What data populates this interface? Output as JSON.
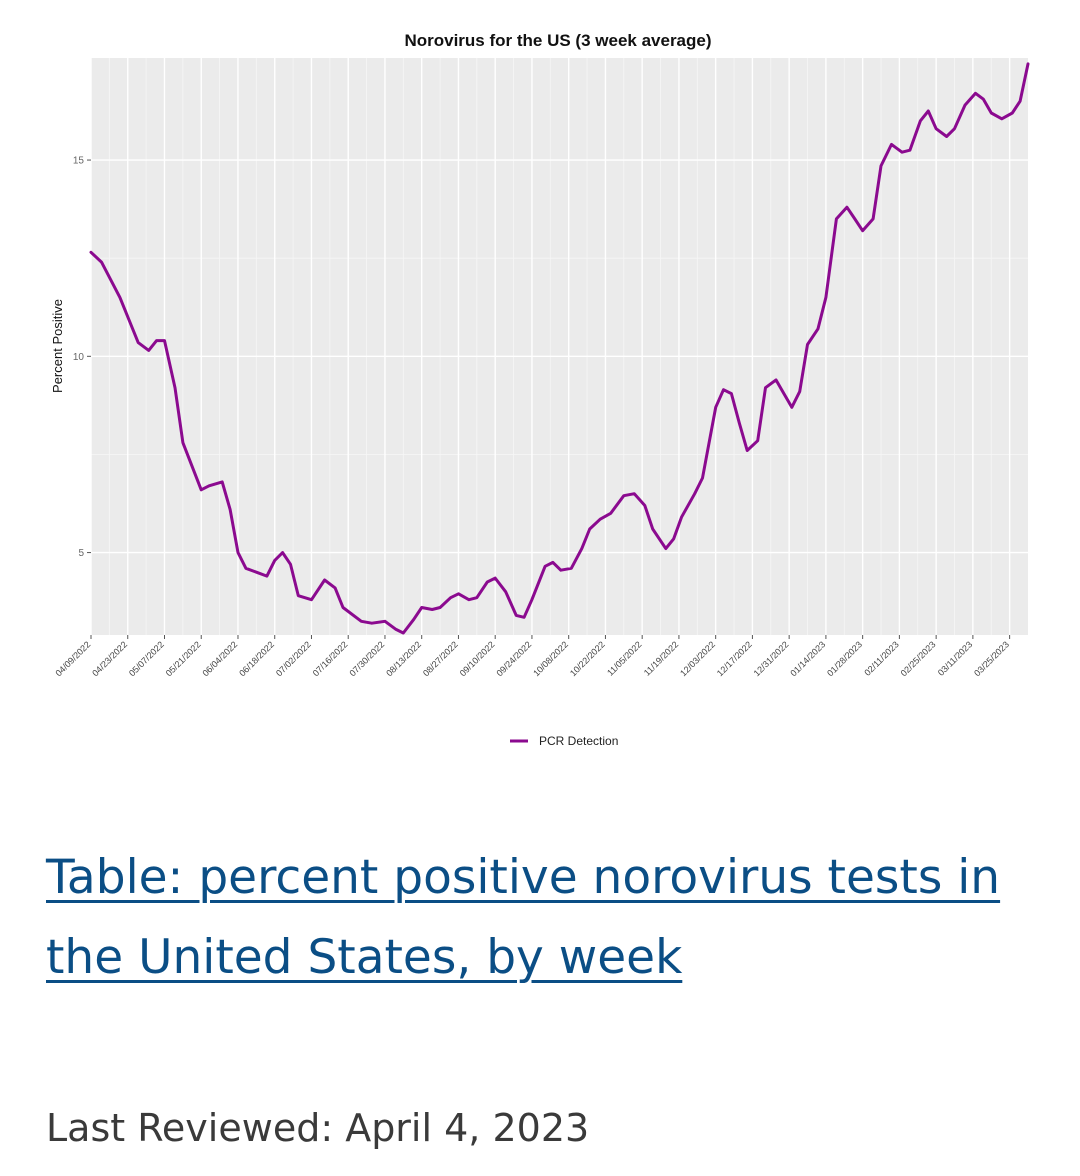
{
  "chart_data": {
    "type": "line",
    "title": "Norovirus for the US (3 week average)",
    "xlabel": "",
    "ylabel": "Percent Positive",
    "yticks": [
      5,
      10,
      15
    ],
    "ylim": [
      2.9,
      17.6
    ],
    "grid": true,
    "legend_position": "bottom",
    "x_tick_labels": [
      "04/09/2022",
      "04/23/2022",
      "05/07/2022",
      "05/21/2022",
      "06/04/2022",
      "06/18/2022",
      "07/02/2022",
      "07/16/2022",
      "07/30/2022",
      "08/13/2022",
      "08/27/2022",
      "09/10/2022",
      "09/24/2022",
      "10/08/2022",
      "10/22/2022",
      "11/05/2022",
      "11/19/2022",
      "12/03/2022",
      "12/17/2022",
      "12/31/2022",
      "01/14/2023",
      "01/28/2023",
      "02/11/2023",
      "02/25/2023",
      "03/11/2023",
      "03/25/2023"
    ],
    "x_start": "04/09/2022",
    "x_end": "04/01/2023",
    "series": [
      {
        "name": "PCR Detection",
        "color": "#8b0a8f",
        "x": [
          "04/09/2022",
          "04/13/2022",
          "04/20/2022",
          "04/27/2022",
          "05/01/2022",
          "05/04/2022",
          "05/07/2022",
          "05/11/2022",
          "05/14/2022",
          "05/21/2022",
          "05/24/2022",
          "05/29/2022",
          "06/01/2022",
          "06/04/2022",
          "06/07/2022",
          "06/11/2022",
          "06/15/2022",
          "06/18/2022",
          "06/21/2022",
          "06/24/2022",
          "06/27/2022",
          "07/02/2022",
          "07/07/2022",
          "07/11/2022",
          "07/14/2022",
          "07/21/2022",
          "07/25/2022",
          "07/30/2022",
          "08/03/2022",
          "08/06/2022",
          "08/10/2022",
          "08/13/2022",
          "08/17/2022",
          "08/20/2022",
          "08/24/2022",
          "08/27/2022",
          "08/31/2022",
          "09/03/2022",
          "09/07/2022",
          "09/10/2022",
          "09/14/2022",
          "09/18/2022",
          "09/21/2022",
          "09/24/2022",
          "09/29/2022",
          "10/02/2022",
          "10/05/2022",
          "10/09/2022",
          "10/13/2022",
          "10/16/2022",
          "10/20/2022",
          "10/24/2022",
          "10/29/2022",
          "11/02/2022",
          "11/06/2022",
          "11/09/2022",
          "11/14/2022",
          "11/17/2022",
          "11/20/2022",
          "11/25/2022",
          "11/28/2022",
          "12/03/2022",
          "12/06/2022",
          "12/09/2022",
          "12/12/2022",
          "12/15/2022",
          "12/19/2022",
          "12/22/2022",
          "12/26/2022",
          "12/29/2022",
          "01/01/2023",
          "01/04/2023",
          "01/07/2023",
          "01/11/2023",
          "01/14/2023",
          "01/18/2023",
          "01/22/2023",
          "01/25/2023",
          "01/28/2023",
          "02/01/2023",
          "02/04/2023",
          "02/08/2023",
          "02/12/2023",
          "02/15/2023",
          "02/19/2023",
          "02/22/2023",
          "02/25/2023",
          "03/01/2023",
          "03/04/2023",
          "03/08/2023",
          "03/12/2023",
          "03/15/2023",
          "03/18/2023",
          "03/22/2023",
          "03/26/2023",
          "03/29/2023",
          "04/01/2023"
        ],
        "values": [
          12.65,
          12.4,
          11.5,
          10.35,
          10.15,
          10.4,
          10.4,
          9.2,
          7.8,
          6.6,
          6.7,
          6.8,
          6.1,
          5.0,
          4.6,
          4.5,
          4.4,
          4.8,
          5.0,
          4.7,
          3.9,
          3.8,
          4.3,
          4.1,
          3.6,
          3.25,
          3.2,
          3.25,
          3.05,
          2.95,
          3.3,
          3.6,
          3.55,
          3.6,
          3.85,
          3.95,
          3.8,
          3.85,
          4.25,
          4.35,
          4.0,
          3.4,
          3.35,
          3.8,
          4.65,
          4.75,
          4.55,
          4.6,
          5.1,
          5.6,
          5.85,
          6.0,
          6.45,
          6.5,
          6.2,
          5.6,
          5.1,
          5.35,
          5.9,
          6.5,
          6.9,
          8.7,
          9.15,
          9.05,
          8.3,
          7.6,
          7.85,
          9.2,
          9.4,
          9.05,
          8.7,
          9.1,
          10.3,
          10.7,
          11.5,
          13.5,
          13.8,
          13.5,
          13.2,
          13.5,
          14.85,
          15.4,
          15.2,
          15.25,
          16.0,
          16.25,
          15.8,
          15.6,
          15.8,
          16.4,
          16.7,
          16.55,
          16.2,
          16.05,
          16.2,
          16.5,
          17.45
        ]
      }
    ]
  },
  "links": {
    "table_label": "Table: percent positive norovirus tests in the United States, by week"
  },
  "footer": {
    "last_reviewed": "Last Reviewed: April 4, 2023"
  }
}
